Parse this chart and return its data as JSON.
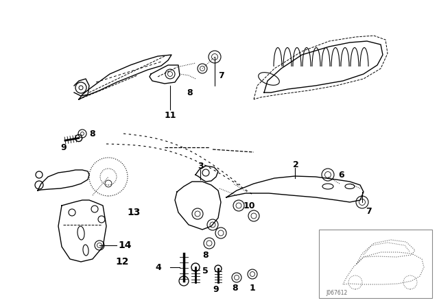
{
  "bg_color": "#ffffff",
  "lc": "#000000",
  "fig_width": 6.4,
  "fig_height": 4.48,
  "dpi": 100,
  "watermark": "J067612"
}
